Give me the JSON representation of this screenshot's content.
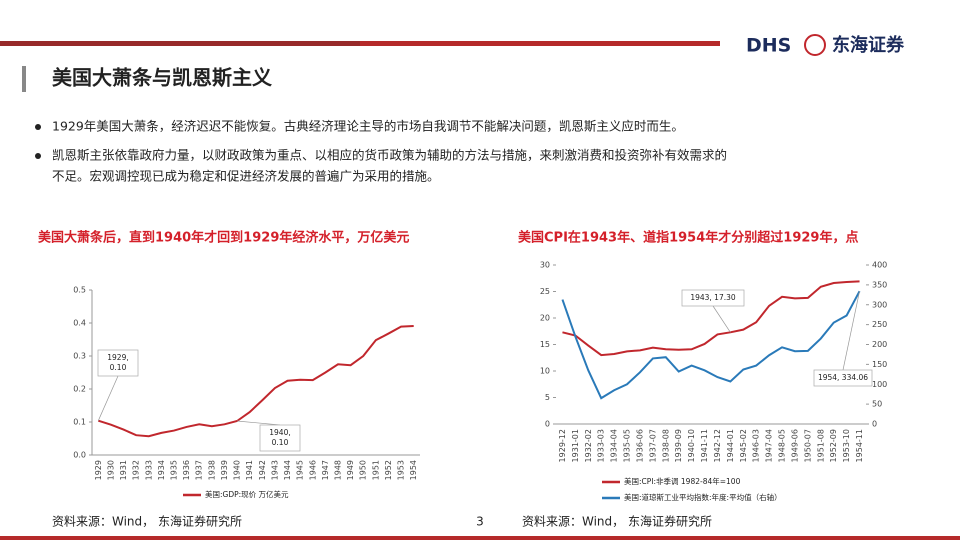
{
  "logo": {
    "brand": "DHS",
    "name": "东海证券"
  },
  "title": "美国大萧条与凯恩斯主义",
  "bullets": [
    [
      "1929年美国大萧条，经济迟迟不能恢复。古典经济理论主导的市场自我调节不能解决问题，凯恩斯主义应时而生。"
    ],
    [
      "凯恩斯主张依靠政府力量，以财政政策为重点、以相应的货币政策为辅助的方法与措施，来刺激消费和投资弥补有效需求的",
      "不足。宏观调控现已成为稳定和促进经济发展的普遍广为采用的措施。"
    ]
  ],
  "page_number": "3",
  "chart_data": [
    {
      "type": "line",
      "title": "美国大萧条后，直到1940年才回到1929年经济水平，万亿美元",
      "categories": [
        "1929",
        "1930",
        "1931",
        "1932",
        "1933",
        "1934",
        "1935",
        "1936",
        "1937",
        "1938",
        "1939",
        "1940",
        "1941",
        "1942",
        "1943",
        "1944",
        "1945",
        "1946",
        "1947",
        "1948",
        "1949",
        "1950",
        "1951",
        "1952",
        "1953",
        "1954"
      ],
      "series": [
        {
          "name": "美国:GDP:现价 万亿美元",
          "color": "#c1272d",
          "values": [
            0.104,
            0.092,
            0.077,
            0.06,
            0.057,
            0.067,
            0.074,
            0.085,
            0.093,
            0.087,
            0.093,
            0.103,
            0.13,
            0.166,
            0.203,
            0.225,
            0.228,
            0.227,
            0.25,
            0.275,
            0.272,
            0.3,
            0.348,
            0.368,
            0.389,
            0.391
          ]
        }
      ],
      "ylim": [
        0,
        0.5
      ],
      "yticks": [
        {
          "value": 0,
          "label": "0.0"
        },
        0.1,
        0.2,
        0.3,
        0.4,
        0.5
      ],
      "annotations": [
        [
          "1929,",
          "0.10"
        ],
        [
          "1940,",
          "0.10"
        ]
      ],
      "source": "资料来源：Wind， 东海证券研究所"
    },
    {
      "type": "line",
      "title": "美国CPI在1943年、道指1954年才分别超过1929年，点",
      "categories": [
        "1929-12",
        "1931-01",
        "1932-02",
        "1933-03",
        "1934-04",
        "1935-05",
        "1936-06",
        "1937-07",
        "1938-08",
        "1939-09",
        "1940-10",
        "1941-11",
        "1942-12",
        "1944-01",
        "1945-02",
        "1946-03",
        "1947-04",
        "1948-05",
        "1949-06",
        "1950-07",
        "1951-08",
        "1952-09",
        "1953-10",
        "1954-11"
      ],
      "series": [
        {
          "name": "美国:CPI:非季调 1982-84年=100",
          "color": "#c1272d",
          "values": [
            17.3,
            16.7,
            14.8,
            13.0,
            13.2,
            13.7,
            13.9,
            14.4,
            14.1,
            14.0,
            14.1,
            15.1,
            16.9,
            17.3,
            17.8,
            19.2,
            22.3,
            24.0,
            23.7,
            23.8,
            25.9,
            26.6,
            26.8,
            26.9
          ]
        },
        {
          "name": "美国:道琼斯工业平均指数:年度:平均值（右轴）",
          "color": "#2a7ab9",
          "axis": "y2",
          "values": [
            313,
            220,
            135,
            65,
            85,
            100,
            130,
            165,
            168,
            132,
            147,
            135,
            118,
            107,
            137,
            147,
            173,
            193,
            183,
            184,
            215,
            255,
            273,
            334.06
          ]
        }
      ],
      "ylim": [
        0,
        30
      ],
      "yticks": [
        0,
        5,
        10,
        15,
        20,
        25,
        30
      ],
      "y2lim": [
        0,
        400
      ],
      "y2ticks": [
        0,
        50,
        100,
        150,
        200,
        250,
        300,
        350,
        400
      ],
      "annotations": [
        [
          "1943, 17.30"
        ],
        [
          "1954, 334.06"
        ]
      ],
      "source": "资料来源：Wind， 东海证券研究所"
    }
  ]
}
